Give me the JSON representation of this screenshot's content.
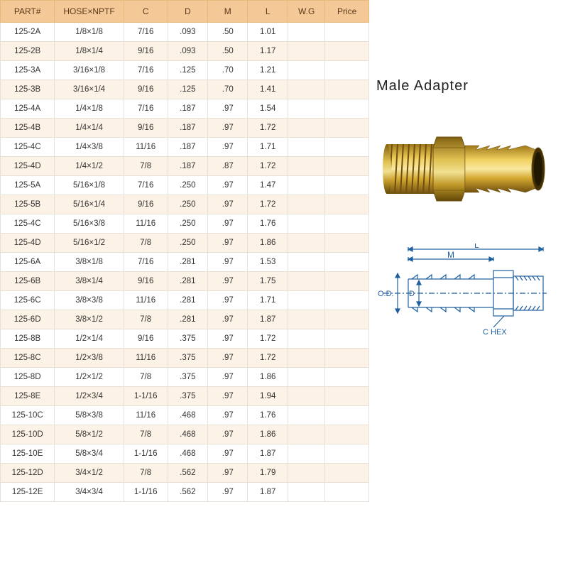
{
  "title": "Male Adapter",
  "columns": [
    "PART#",
    "HOSE×NPTF",
    "C",
    "D",
    "M",
    "L",
    "W.G",
    "Price"
  ],
  "col_widths": [
    "70px",
    "90px",
    "55px",
    "50px",
    "50px",
    "50px",
    "45px",
    "55px"
  ],
  "header_bg": "#f5c898",
  "header_text_color": "#5a3a1a",
  "row_alt_bg": "#fdf2e6",
  "row_bg": "#ffffff",
  "border_color": "#e8e0d8",
  "cell_text_color": "#333333",
  "title_color": "#222222",
  "title_fontsize": 20,
  "body_fontsize": 11.5,
  "header_fontsize": 12,
  "brass_colors": {
    "light": "#f0d060",
    "mid": "#d4a830",
    "dark": "#a07818",
    "shadow": "#705010"
  },
  "diagram_stroke": "#2060a0",
  "diagram_labels": {
    "L": "L",
    "M": "M",
    "OD": "O.D.",
    "D": "D",
    "CHEX": "C HEX"
  },
  "rows": [
    [
      "125-2A",
      "1/8×1/8",
      "7/16",
      ".093",
      ".50",
      "1.01",
      "",
      ""
    ],
    [
      "125-2B",
      "1/8×1/4",
      "9/16",
      ".093",
      ".50",
      "1.17",
      "",
      ""
    ],
    [
      "125-3A",
      "3/16×1/8",
      "7/16",
      ".125",
      ".70",
      "1.21",
      "",
      ""
    ],
    [
      "125-3B",
      "3/16×1/4",
      "9/16",
      ".125",
      ".70",
      "1.41",
      "",
      ""
    ],
    [
      "125-4A",
      "1/4×1/8",
      "7/16",
      ".187",
      ".97",
      "1.54",
      "",
      ""
    ],
    [
      "125-4B",
      "1/4×1/4",
      "9/16",
      ".187",
      ".97",
      "1.72",
      "",
      ""
    ],
    [
      "125-4C",
      "1/4×3/8",
      "11/16",
      ".187",
      ".97",
      "1.71",
      "",
      ""
    ],
    [
      "125-4D",
      "1/4×1/2",
      "7/8",
      ".187",
      ".87",
      "1.72",
      "",
      ""
    ],
    [
      "125-5A",
      "5/16×1/8",
      "7/16",
      ".250",
      ".97",
      "1.47",
      "",
      ""
    ],
    [
      "125-5B",
      "5/16×1/4",
      "9/16",
      ".250",
      ".97",
      "1.72",
      "",
      ""
    ],
    [
      "125-4C",
      "5/16×3/8",
      "11/16",
      ".250",
      ".97",
      "1.76",
      "",
      ""
    ],
    [
      "125-4D",
      "5/16×1/2",
      "7/8",
      ".250",
      ".97",
      "1.86",
      "",
      ""
    ],
    [
      "125-6A",
      "3/8×1/8",
      "7/16",
      ".281",
      ".97",
      "1.53",
      "",
      ""
    ],
    [
      "125-6B",
      "3/8×1/4",
      "9/16",
      ".281",
      ".97",
      "1.75",
      "",
      ""
    ],
    [
      "125-6C",
      "3/8×3/8",
      "11/16",
      ".281",
      ".97",
      "1.71",
      "",
      ""
    ],
    [
      "125-6D",
      "3/8×1/2",
      "7/8",
      ".281",
      ".97",
      "1.87",
      "",
      ""
    ],
    [
      "125-8B",
      "1/2×1/4",
      "9/16",
      ".375",
      ".97",
      "1.72",
      "",
      ""
    ],
    [
      "125-8C",
      "1/2×3/8",
      "11/16",
      ".375",
      ".97",
      "1.72",
      "",
      ""
    ],
    [
      "125-8D",
      "1/2×1/2",
      "7/8",
      ".375",
      ".97",
      "1.86",
      "",
      ""
    ],
    [
      "125-8E",
      "1/2×3/4",
      "1-1/16",
      ".375",
      ".97",
      "1.94",
      "",
      ""
    ],
    [
      "125-10C",
      "5/8×3/8",
      "11/16",
      ".468",
      ".97",
      "1.76",
      "",
      ""
    ],
    [
      "125-10D",
      "5/8×1/2",
      "7/8",
      ".468",
      ".97",
      "1.86",
      "",
      ""
    ],
    [
      "125-10E",
      "5/8×3/4",
      "1-1/16",
      ".468",
      ".97",
      "1.87",
      "",
      ""
    ],
    [
      "125-12D",
      "3/4×1/2",
      "7/8",
      ".562",
      ".97",
      "1.79",
      "",
      ""
    ],
    [
      "125-12E",
      "3/4×3/4",
      "1-1/16",
      ".562",
      ".97",
      "1.87",
      "",
      ""
    ]
  ]
}
